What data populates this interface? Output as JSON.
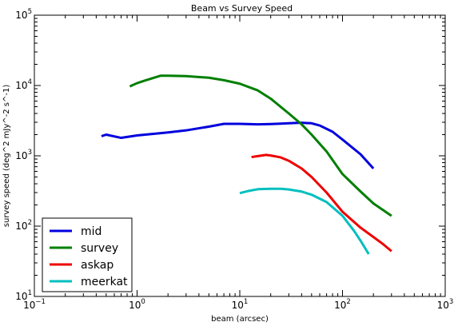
{
  "chart_data": {
    "type": "line",
    "title": "Beam vs Survey Speed",
    "xlabel": "beam (arcsec)",
    "ylabel": "survey speed (deg^2 mJy^-2 s^-1)",
    "xscale": "log",
    "yscale": "log",
    "xlim": [
      0.1,
      1000
    ],
    "ylim": [
      10,
      100000
    ],
    "x_ticks": [
      {
        "base": "10",
        "exp": "−1",
        "value": 0.1
      },
      {
        "base": "10",
        "exp": "0",
        "value": 1
      },
      {
        "base": "10",
        "exp": "1",
        "value": 10
      },
      {
        "base": "10",
        "exp": "2",
        "value": 100
      },
      {
        "base": "10",
        "exp": "3",
        "value": 1000
      }
    ],
    "y_ticks": [
      {
        "base": "10",
        "exp": "1",
        "value": 10
      },
      {
        "base": "10",
        "exp": "2",
        "value": 100
      },
      {
        "base": "10",
        "exp": "3",
        "value": 1000
      },
      {
        "base": "10",
        "exp": "4",
        "value": 10000
      },
      {
        "base": "10",
        "exp": "5",
        "value": 100000
      }
    ],
    "grid": false,
    "legend_position": "bottom-left",
    "series": [
      {
        "name": "mid",
        "color": "#0000dd",
        "x": [
          0.45,
          0.5,
          0.7,
          1.0,
          2.0,
          3.0,
          5.0,
          7.0,
          10.0,
          15.0,
          20.0,
          25.0,
          30.0,
          35.0,
          40.0,
          50.0,
          60.0,
          80.0,
          100.0,
          150.0,
          200.0
        ],
        "y": [
          1900,
          2000,
          1800,
          1950,
          2150,
          2300,
          2600,
          2850,
          2850,
          2800,
          2830,
          2870,
          2900,
          2930,
          2950,
          2900,
          2700,
          2200,
          1700,
          1050,
          660
        ]
      },
      {
        "name": "survey",
        "color": "#007f00",
        "x": [
          0.85,
          1.0,
          1.2,
          1.7,
          2.0,
          3.0,
          5.0,
          7.0,
          10.0,
          15.0,
          20.0,
          30.0,
          40.0,
          50.0,
          70.0,
          100.0,
          150.0,
          200.0,
          300.0
        ],
        "y": [
          9700,
          10800,
          11800,
          13800,
          13800,
          13600,
          12900,
          11900,
          10600,
          8500,
          6500,
          4000,
          2800,
          2000,
          1150,
          550,
          310,
          210,
          140
        ]
      },
      {
        "name": "askap",
        "color": "#ee0000",
        "x": [
          13.0,
          15.0,
          18.0,
          20.0,
          25.0,
          30.0,
          40.0,
          50.0,
          70.0,
          100.0,
          150.0,
          200.0,
          250.0,
          300.0
        ],
        "y": [
          960,
          990,
          1030,
          1010,
          950,
          850,
          660,
          500,
          300,
          160,
          95,
          70,
          55,
          44
        ]
      },
      {
        "name": "meerkat",
        "color": "#00bfbf",
        "x": [
          10.0,
          12.0,
          15.0,
          20.0,
          25.0,
          30.0,
          40.0,
          50.0,
          70.0,
          100.0,
          130.0,
          150.0,
          180.0
        ],
        "y": [
          295,
          315,
          335,
          340,
          340,
          332,
          310,
          280,
          220,
          140,
          85,
          62,
          40
        ]
      }
    ]
  }
}
